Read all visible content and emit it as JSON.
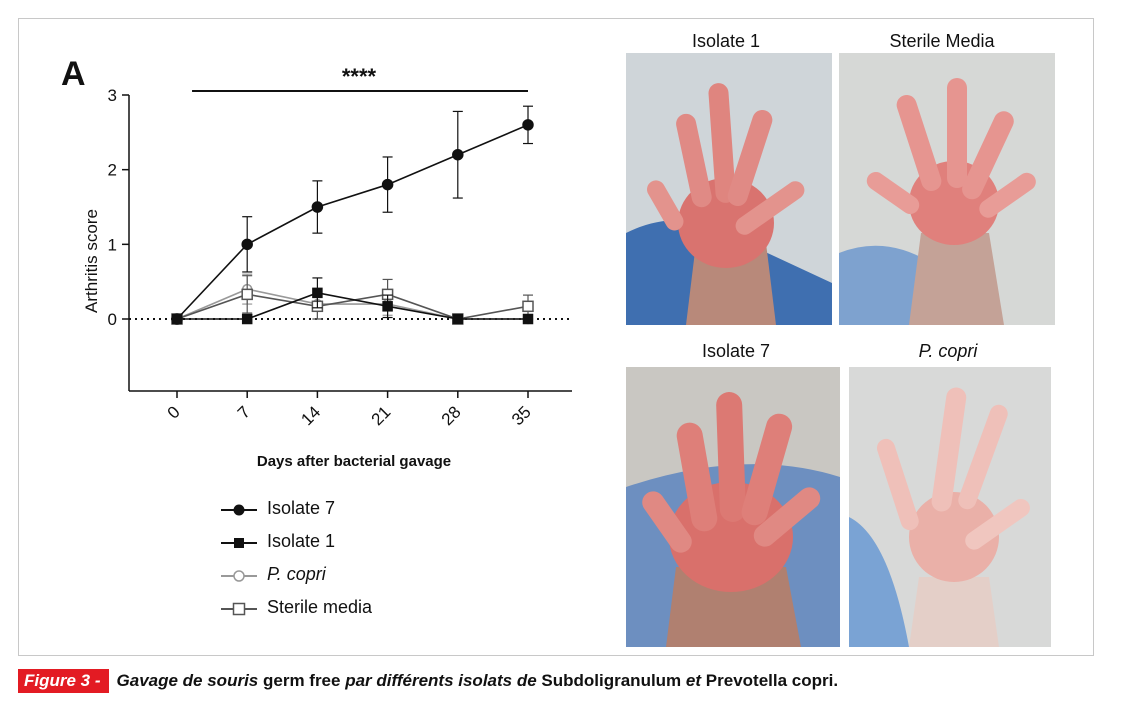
{
  "figure": {
    "panel_letter": "A",
    "caption": {
      "label": "Figure 3 -",
      "part1": "Gavage de souris",
      "part2": "germ free",
      "part3": "par différents isolats de",
      "part4": "Subdoligranulum",
      "part5": "et",
      "part6": "Prevotella copri."
    }
  },
  "photos": [
    {
      "title": "Isolate 1",
      "italic": false
    },
    {
      "title": "Sterile Media",
      "italic": false
    },
    {
      "title": "Isolate 7",
      "italic": false
    },
    {
      "title": "P. copri",
      "italic": true
    }
  ],
  "colors": {
    "accent": "#e31b23",
    "line": "#111111",
    "open_line": "#555555",
    "p_copri": "#999999"
  },
  "chart_data": {
    "type": "line",
    "title": "",
    "xlabel": "Days after bacterial gavage",
    "ylabel": "Arthritis score",
    "x": [
      0,
      7,
      14,
      21,
      28,
      35
    ],
    "x_tick_labels": [
      "0",
      "7",
      "14",
      "21",
      "28",
      "35"
    ],
    "y_tick_labels": [
      "0",
      "1",
      "2",
      "3"
    ],
    "ylim": [
      -1,
      3
    ],
    "yticks": [
      0,
      1,
      2,
      3
    ],
    "grid": false,
    "reference_line_y": 0,
    "significance": {
      "label": "****",
      "x_from": 1.5,
      "x_to": 35
    },
    "legend_position": "bottom-left",
    "series": [
      {
        "name": "Isolate 7",
        "marker": "filled-circle",
        "values": [
          0,
          1.0,
          1.5,
          1.8,
          2.2,
          2.6
        ],
        "error": [
          0,
          0.37,
          0.35,
          0.37,
          0.58,
          0.25
        ]
      },
      {
        "name": "Isolate 1",
        "marker": "filled-square",
        "values": [
          0,
          0,
          0.35,
          0.17,
          0,
          0
        ],
        "error": [
          0,
          0,
          0.2,
          0.15,
          0,
          0
        ]
      },
      {
        "name": "P. copri",
        "marker": "open-circle",
        "values": [
          0,
          0.4,
          0.2,
          0.2,
          0,
          0
        ],
        "error": [
          0,
          0.2,
          0.2,
          0.15,
          0,
          0
        ]
      },
      {
        "name": "Sterile media",
        "marker": "open-square",
        "values": [
          0,
          0.33,
          0.17,
          0.33,
          0,
          0.17
        ],
        "error": [
          0,
          0.25,
          0.17,
          0.2,
          0,
          0.15
        ]
      }
    ]
  }
}
